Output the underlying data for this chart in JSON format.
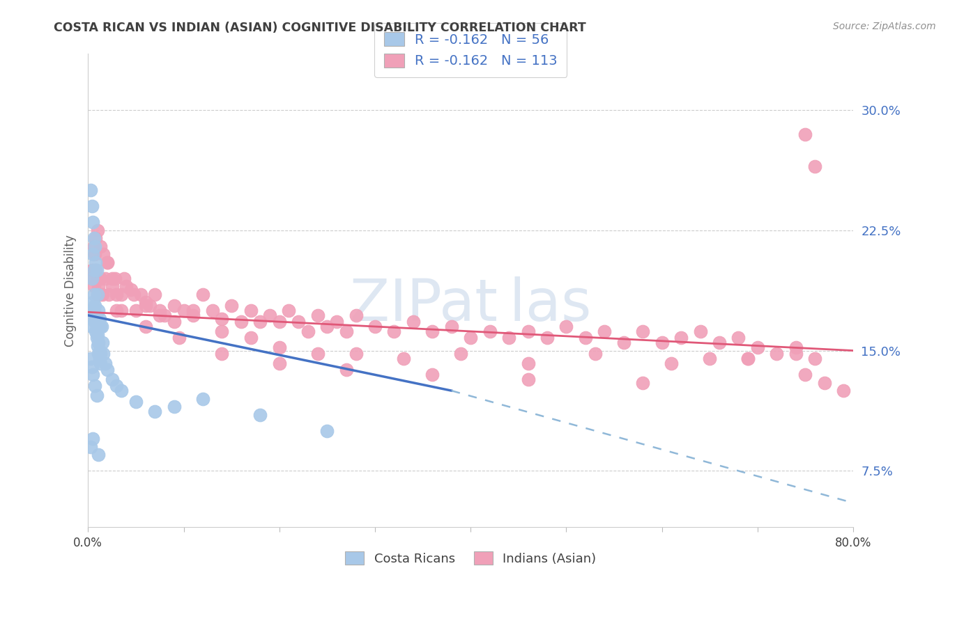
{
  "title": "COSTA RICAN VS INDIAN (ASIAN) COGNITIVE DISABILITY CORRELATION CHART",
  "source": "Source: ZipAtlas.com",
  "ylabel": "Cognitive Disability",
  "ytick_labels": [
    "30.0%",
    "22.5%",
    "15.0%",
    "7.5%"
  ],
  "ytick_values": [
    0.3,
    0.225,
    0.15,
    0.075
  ],
  "xlim": [
    0.0,
    0.8
  ],
  "ylim": [
    0.04,
    0.335
  ],
  "cr_R": "-0.162",
  "cr_N": "56",
  "ind_R": "-0.162",
  "ind_N": "113",
  "cr_color": "#a8c8e8",
  "ind_color": "#f0a0b8",
  "cr_line_color": "#4472c4",
  "ind_line_color": "#e05878",
  "dash_line_color": "#90b8d8",
  "legend_text_color": "#4472c4",
  "title_color": "#404040",
  "source_color": "#909090",
  "ylabel_color": "#606060",
  "ytick_color": "#4472c4",
  "watermark_color": "#c8d8ea",
  "cr_line": [
    0.0,
    0.172,
    0.38,
    0.125
  ],
  "cr_dash": [
    0.38,
    0.125,
    0.8,
    0.055
  ],
  "ind_line": [
    0.0,
    0.174,
    0.8,
    0.15
  ],
  "cr_scatter_x": [
    0.004,
    0.005,
    0.006,
    0.007,
    0.008,
    0.009,
    0.01,
    0.011,
    0.012,
    0.013,
    0.004,
    0.005,
    0.006,
    0.007,
    0.008,
    0.009,
    0.01,
    0.011,
    0.012,
    0.013,
    0.004,
    0.005,
    0.006,
    0.007,
    0.008,
    0.009,
    0.01,
    0.011,
    0.012,
    0.013,
    0.003,
    0.004,
    0.005,
    0.006,
    0.014,
    0.015,
    0.016,
    0.018,
    0.02,
    0.025,
    0.03,
    0.035,
    0.05,
    0.07,
    0.09,
    0.12,
    0.18,
    0.25,
    0.003,
    0.004,
    0.005,
    0.007,
    0.009,
    0.011,
    0.003,
    0.005
  ],
  "cr_scatter_y": [
    0.195,
    0.21,
    0.22,
    0.215,
    0.205,
    0.2,
    0.185,
    0.175,
    0.17,
    0.165,
    0.175,
    0.18,
    0.185,
    0.178,
    0.17,
    0.165,
    0.16,
    0.155,
    0.15,
    0.148,
    0.165,
    0.17,
    0.175,
    0.168,
    0.162,
    0.158,
    0.153,
    0.148,
    0.145,
    0.142,
    0.25,
    0.24,
    0.23,
    0.2,
    0.165,
    0.155,
    0.148,
    0.142,
    0.138,
    0.132,
    0.128,
    0.125,
    0.118,
    0.112,
    0.115,
    0.12,
    0.11,
    0.1,
    0.145,
    0.14,
    0.135,
    0.128,
    0.122,
    0.085,
    0.09,
    0.095
  ],
  "ind_scatter_x": [
    0.004,
    0.005,
    0.006,
    0.007,
    0.008,
    0.009,
    0.01,
    0.011,
    0.012,
    0.013,
    0.015,
    0.018,
    0.02,
    0.022,
    0.025,
    0.028,
    0.03,
    0.035,
    0.04,
    0.045,
    0.05,
    0.055,
    0.06,
    0.065,
    0.07,
    0.075,
    0.08,
    0.09,
    0.1,
    0.11,
    0.12,
    0.13,
    0.14,
    0.15,
    0.16,
    0.17,
    0.18,
    0.19,
    0.2,
    0.21,
    0.22,
    0.23,
    0.24,
    0.25,
    0.26,
    0.27,
    0.28,
    0.3,
    0.32,
    0.34,
    0.36,
    0.38,
    0.4,
    0.42,
    0.44,
    0.46,
    0.48,
    0.5,
    0.52,
    0.54,
    0.56,
    0.58,
    0.6,
    0.62,
    0.64,
    0.65,
    0.66,
    0.68,
    0.7,
    0.72,
    0.74,
    0.75,
    0.76,
    0.006,
    0.008,
    0.01,
    0.013,
    0.016,
    0.02,
    0.025,
    0.03,
    0.038,
    0.048,
    0.06,
    0.075,
    0.09,
    0.11,
    0.14,
    0.17,
    0.2,
    0.24,
    0.28,
    0.33,
    0.39,
    0.46,
    0.53,
    0.61,
    0.69,
    0.74,
    0.76,
    0.035,
    0.06,
    0.095,
    0.14,
    0.2,
    0.27,
    0.36,
    0.46,
    0.58,
    0.69,
    0.75,
    0.77,
    0.79
  ],
  "ind_scatter_y": [
    0.2,
    0.195,
    0.19,
    0.21,
    0.2,
    0.195,
    0.185,
    0.19,
    0.185,
    0.195,
    0.185,
    0.195,
    0.205,
    0.185,
    0.19,
    0.195,
    0.175,
    0.185,
    0.19,
    0.188,
    0.175,
    0.185,
    0.18,
    0.178,
    0.185,
    0.175,
    0.172,
    0.178,
    0.175,
    0.172,
    0.185,
    0.175,
    0.17,
    0.178,
    0.168,
    0.175,
    0.168,
    0.172,
    0.168,
    0.175,
    0.168,
    0.162,
    0.172,
    0.165,
    0.168,
    0.162,
    0.172,
    0.165,
    0.162,
    0.168,
    0.162,
    0.165,
    0.158,
    0.162,
    0.158,
    0.162,
    0.158,
    0.165,
    0.158,
    0.162,
    0.155,
    0.162,
    0.155,
    0.158,
    0.162,
    0.145,
    0.155,
    0.158,
    0.152,
    0.148,
    0.152,
    0.285,
    0.265,
    0.215,
    0.22,
    0.225,
    0.215,
    0.21,
    0.205,
    0.195,
    0.185,
    0.195,
    0.185,
    0.178,
    0.172,
    0.168,
    0.175,
    0.162,
    0.158,
    0.152,
    0.148,
    0.148,
    0.145,
    0.148,
    0.142,
    0.148,
    0.142,
    0.145,
    0.148,
    0.145,
    0.175,
    0.165,
    0.158,
    0.148,
    0.142,
    0.138,
    0.135,
    0.132,
    0.13,
    0.145,
    0.135,
    0.13,
    0.125
  ]
}
